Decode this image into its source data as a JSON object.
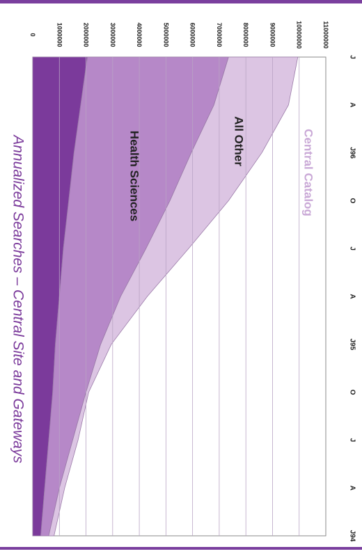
{
  "chart_data": {
    "type": "area",
    "stacked": true,
    "orientation": "rotated-90-clockwise",
    "title": "Annualized Searches – Central Site and Gateways",
    "x": [
      "J94",
      "A",
      "J",
      "O",
      "J95",
      "A",
      "J",
      "O",
      "J96",
      "A",
      "J"
    ],
    "ylim": [
      0,
      11000000
    ],
    "yticks": [
      0,
      1000000,
      2000000,
      3000000,
      4000000,
      5000000,
      6000000,
      7000000,
      8000000,
      9000000,
      10000000,
      11000000
    ],
    "ytick_labels": [
      "0",
      "1000000",
      "2000000",
      "3000000",
      "4000000",
      "5000000",
      "6000000",
      "7000000",
      "8000000",
      "9000000",
      "10000000",
      "11000000"
    ],
    "grid": true,
    "series": [
      {
        "name": "Central Catalog",
        "color": "#7b3a9b",
        "values": [
          300000,
          450000,
          600000,
          750000,
          850000,
          1000000,
          1150000,
          1350000,
          1550000,
          1800000,
          2050000
        ]
      },
      {
        "name": "All Other",
        "color": "#b688c8",
        "values": [
          300000,
          550000,
          900000,
          1250000,
          1700000,
          2300000,
          3100000,
          3800000,
          4400000,
          5000000,
          5300000
        ]
      },
      {
        "name": "Health Sciences",
        "color": "#dcc5e3",
        "values": [
          200000,
          200000,
          200000,
          100000,
          400000,
          1000000,
          1600000,
          2200000,
          2650000,
          2800000,
          2600000
        ]
      }
    ]
  }
}
